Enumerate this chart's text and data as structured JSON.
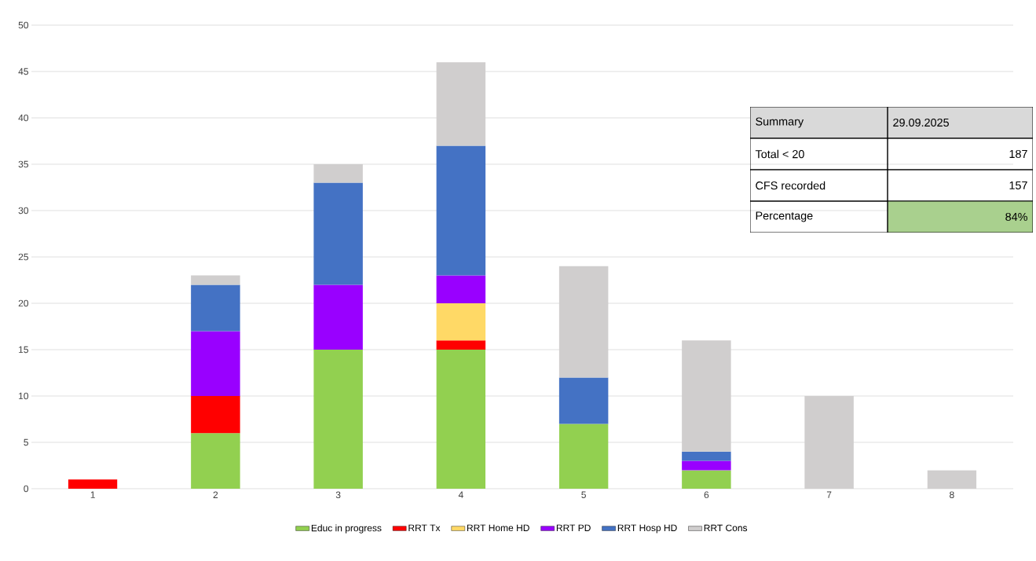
{
  "chart_data": [
    {
      "type": "bar",
      "stacked": true,
      "categories": [
        "1",
        "2",
        "3",
        "4",
        "5",
        "6",
        "7",
        "8"
      ],
      "series": [
        {
          "name": "Educ in progress",
          "color": "#92d050",
          "values": [
            null,
            6,
            15,
            15,
            7,
            2,
            null,
            null
          ]
        },
        {
          "name": "RRT Tx",
          "color": "#ff0000",
          "values": [
            1,
            4,
            null,
            1,
            null,
            null,
            null,
            null
          ]
        },
        {
          "name": "RRT Home HD",
          "color": "#ffd966",
          "values": [
            null,
            null,
            null,
            4,
            null,
            null,
            null,
            null
          ]
        },
        {
          "name": "RRT PD",
          "color": "#9900ff",
          "values": [
            null,
            7,
            7,
            3,
            null,
            1,
            null,
            null
          ]
        },
        {
          "name": "RRT Hosp HD",
          "color": "#4472c4",
          "values": [
            null,
            5,
            11,
            14,
            5,
            1,
            null,
            null
          ]
        },
        {
          "name": "RRT Cons",
          "color": "#d0cece",
          "values": [
            null,
            1,
            2,
            9,
            12,
            12,
            10,
            2
          ]
        }
      ],
      "ylim": [
        0,
        50
      ],
      "yticks": [
        0,
        5,
        10,
        15,
        20,
        25,
        30,
        35,
        40,
        45,
        50
      ],
      "grid": "y",
      "legend": "bottom"
    },
    {
      "type": "other",
      "annotations": [
        "Summary",
        "29.09.2025",
        "Total < 20",
        "187",
        "CFS recorded",
        "157",
        "Percentage",
        "84%"
      ]
    }
  ]
}
